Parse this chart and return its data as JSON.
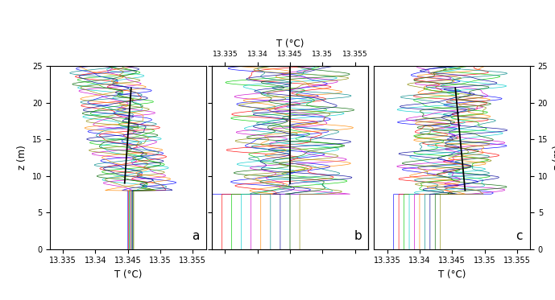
{
  "xlim": [
    13.333,
    13.357
  ],
  "ylim": [
    0,
    25
  ],
  "xticks": [
    13.335,
    13.34,
    13.345,
    13.35,
    13.355
  ],
  "xtick_labels": [
    "13.335",
    "13.34",
    "13.345",
    "13.35",
    "13.355"
  ],
  "yticks": [
    0,
    5,
    10,
    15,
    20,
    25
  ],
  "xlabel": "T (°C)",
  "ylabel": "z (m)",
  "panel_labels": [
    "a",
    "b",
    "c"
  ],
  "top_xlabel": "T (°C)",
  "colors": [
    "#0000ff",
    "#ff0000",
    "#00cc00",
    "#00cccc",
    "#cc00cc",
    "#ff8800",
    "#008888",
    "#000099",
    "#006600",
    "#888800"
  ],
  "n_profiles": 10,
  "lw": 0.5
}
